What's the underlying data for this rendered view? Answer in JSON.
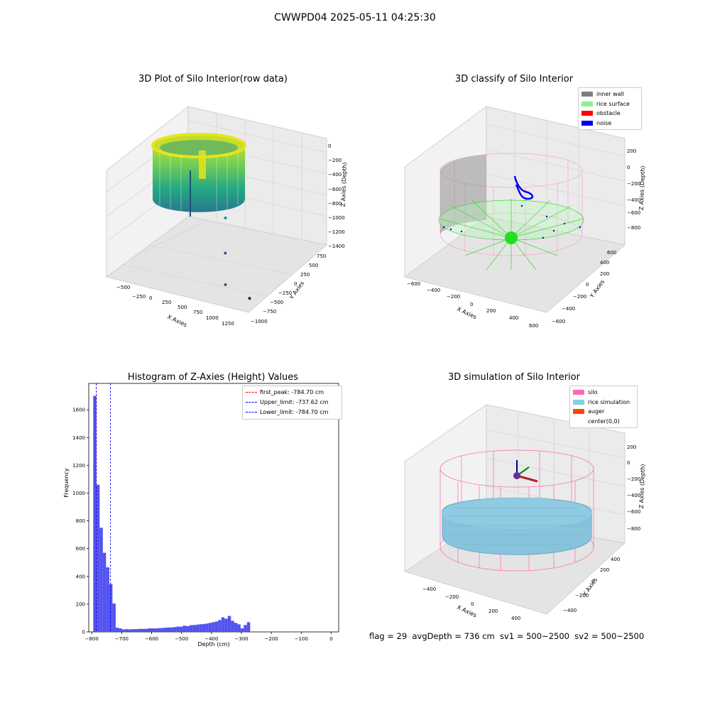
{
  "figure": {
    "suptitle": "CWWPD04 2025-05-11 04:25:30",
    "footer": "flag = 29  avgDepth = 736 cm  sv1 = 500~2500  sv2 = 500~2500"
  },
  "chart_data": [
    {
      "type": "scatter",
      "projection": "3d",
      "title": "3D Plot of Silo Interior(row data)",
      "xlabel": "X Axies",
      "ylabel": "Y Axies",
      "zlabel": "Z Axies (Depth)",
      "xticks": [
        "−500",
        "−250",
        "0",
        "250",
        "500",
        "750",
        "1000",
        "1250"
      ],
      "yticks": [
        "−1000",
        "−750",
        "−500",
        "−250",
        "0",
        "250",
        "500",
        "750"
      ],
      "zticks": [
        "0",
        "−200",
        "−400",
        "−600",
        "−800",
        "−1000",
        "−1200",
        "−1400"
      ],
      "colormap": "viridis",
      "outlier_points": [
        {
          "x": 1180,
          "y": 480,
          "z": -1400
        },
        {
          "x": 900,
          "y": 650,
          "z": -1200
        },
        {
          "x": 650,
          "y": 300,
          "z": -900
        },
        {
          "x": 300,
          "y": -200,
          "z": -700
        }
      ]
    },
    {
      "type": "scatter",
      "projection": "3d",
      "title": "3D classify of Silo Interior",
      "xlabel": "X Axies",
      "ylabel": "Y Axies",
      "zlabel": "Z Axies (Depth)",
      "xticks": [
        "−600",
        "−400",
        "−200",
        "0",
        "200",
        "400",
        "600"
      ],
      "yticks": [
        "−600",
        "−400",
        "−200",
        "0",
        "200",
        "400",
        "600"
      ],
      "zticks": [
        "200",
        "0",
        "−200",
        "−400",
        "−600",
        "−800"
      ],
      "legend": {
        "location": "upper right",
        "entries": [
          {
            "label": "inner wall",
            "color": "#808080"
          },
          {
            "label": "rice surface",
            "color": "#90ee90"
          },
          {
            "label": "obstacle",
            "color": "#ff0000"
          },
          {
            "label": "noise",
            "color": "#0000ff"
          }
        ]
      }
    },
    {
      "type": "bar",
      "title": "Histogram of Z-Axies (Height) Values",
      "xlabel": "Depth (cm)",
      "ylabel": "Frequency",
      "xlim": [
        -810,
        25
      ],
      "ylim": [
        0,
        1790
      ],
      "xticks": [
        -800,
        -700,
        -600,
        -500,
        -400,
        -300,
        -200,
        -100,
        0
      ],
      "yticks": [
        0,
        200,
        400,
        600,
        800,
        1000,
        1200,
        1400,
        1600
      ],
      "bar_color": "#4a4af0",
      "bin_start": -795,
      "bin_width": 10.7,
      "values": [
        1700,
        1060,
        750,
        570,
        465,
        345,
        205,
        30,
        25,
        18,
        20,
        18,
        20,
        20,
        22,
        22,
        22,
        25,
        25,
        25,
        27,
        28,
        30,
        32,
        32,
        35,
        38,
        38,
        45,
        42,
        48,
        50,
        52,
        55,
        57,
        60,
        65,
        70,
        75,
        85,
        105,
        95,
        115,
        80,
        65,
        55,
        25,
        50,
        70
      ],
      "vlines": [
        {
          "label": "first_peak: -784.70 cm",
          "x": -784.7,
          "color": "#ff0000"
        },
        {
          "label": "Upper_limit: -737.62 cm",
          "x": -737.62,
          "color": "#0000ff"
        },
        {
          "label": "Lower_limit: -784.70 cm",
          "x": -784.7,
          "color": "#0000ff"
        }
      ]
    },
    {
      "type": "surface",
      "projection": "3d",
      "title": "3D simulation of Silo Interior",
      "xlabel": "X Axies",
      "ylabel": "Y Axies",
      "zlabel": "Z Axies (Depth)",
      "xticks": [
        "−400",
        "−200",
        "0",
        "200",
        "400"
      ],
      "yticks": [
        "−400",
        "−200",
        "0",
        "200",
        "400"
      ],
      "zticks": [
        "200",
        "0",
        "−200",
        "−400",
        "−600",
        "−800"
      ],
      "legend": {
        "location": "upper right",
        "entries": [
          {
            "label": "silo",
            "color": "#ff69b4"
          },
          {
            "label": "rice simulation",
            "color": "#87ceeb"
          },
          {
            "label": "auger",
            "color": "#ff4500"
          },
          {
            "label": "center(0,0)",
            "color": "#ffffff"
          }
        ]
      }
    }
  ]
}
